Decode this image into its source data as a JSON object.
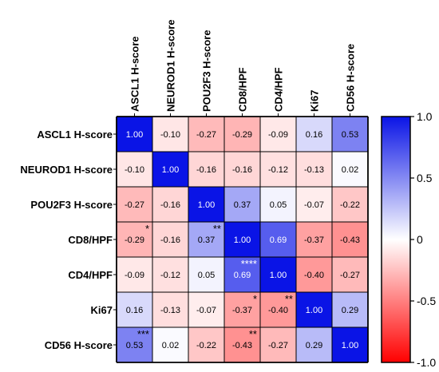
{
  "chart_data": {
    "type": "heatmap",
    "variables": [
      "ASCL1 H-score",
      "NEUROD1 H-score",
      "POU2F3 H-score",
      "CD8/HPF",
      "CD4/HPF",
      "Ki67",
      "CD56 H-score"
    ],
    "values": [
      [
        1.0,
        -0.1,
        -0.27,
        -0.29,
        -0.09,
        0.16,
        0.53
      ],
      [
        -0.1,
        1.0,
        -0.16,
        -0.16,
        -0.12,
        -0.13,
        0.02
      ],
      [
        -0.27,
        -0.16,
        1.0,
        0.37,
        0.05,
        -0.07,
        -0.22
      ],
      [
        -0.29,
        -0.16,
        0.37,
        1.0,
        0.69,
        -0.37,
        -0.43
      ],
      [
        -0.09,
        -0.12,
        0.05,
        0.69,
        1.0,
        -0.4,
        -0.27
      ],
      [
        0.16,
        -0.13,
        -0.07,
        -0.37,
        -0.4,
        1.0,
        0.29
      ],
      [
        0.53,
        0.02,
        -0.22,
        -0.43,
        -0.27,
        0.29,
        1.0
      ]
    ],
    "value_labels": [
      [
        "1.00",
        "-0.10",
        "-0.27",
        "-0.29",
        "-0.09",
        "0.16",
        "0.53"
      ],
      [
        "-0.10",
        "1.00",
        "-0.16",
        "-0.16",
        "-0.12",
        "-0.13",
        "0.02"
      ],
      [
        "-0.27",
        "-0.16",
        "1.00",
        "0.37",
        "0.05",
        "-0.07",
        "-0.22"
      ],
      [
        "-0.29",
        "-0.16",
        "0.37",
        "1.00",
        "0.69",
        "-0.37",
        "-0.43"
      ],
      [
        "-0.09",
        "-0.12",
        "0.05",
        "0.69",
        "1.00",
        "-0.40",
        "-0.27"
      ],
      [
        "0.16",
        "-0.13",
        "-0.07",
        "-0.37",
        "-0.40",
        "1.00",
        "0.29"
      ],
      [
        "0.53",
        "0.02",
        "-0.22",
        "-0.43",
        "-0.27",
        "0.29",
        "1.00"
      ]
    ],
    "significance": [
      {
        "row": 3,
        "col": 0,
        "mark": "*"
      },
      {
        "row": 3,
        "col": 2,
        "mark": "**"
      },
      {
        "row": 4,
        "col": 3,
        "mark": "****"
      },
      {
        "row": 5,
        "col": 3,
        "mark": "*"
      },
      {
        "row": 5,
        "col": 4,
        "mark": "**"
      },
      {
        "row": 6,
        "col": 0,
        "mark": "***"
      },
      {
        "row": 6,
        "col": 3,
        "mark": "**"
      }
    ],
    "colorbar": {
      "range": [
        -1.0,
        1.0
      ],
      "ticks": [
        1.0,
        0.5,
        0,
        -0.5,
        -1.0
      ],
      "tick_labels": [
        "1.0",
        "0.5",
        "0",
        "-0.5",
        "-1.0"
      ],
      "colors": {
        "max": "#0a14e6",
        "mid": "#ffffff",
        "min": "#ff0000"
      }
    },
    "legend_placement": "right"
  }
}
